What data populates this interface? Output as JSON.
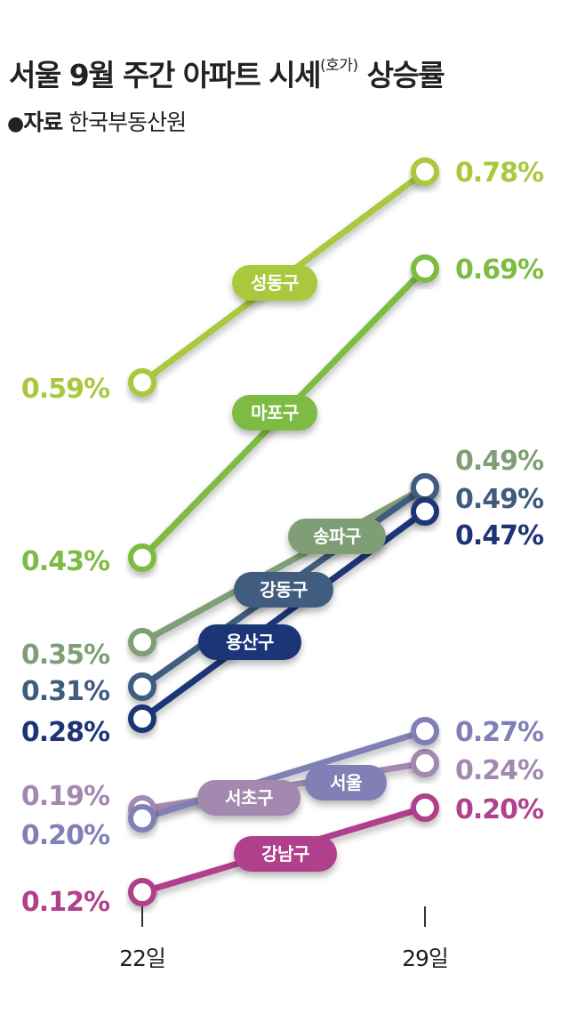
{
  "header": {
    "title_main": "서울 9월 주간 아파트 시세",
    "title_sup": "(호가)",
    "title_end": "상승률",
    "source_bullet": "●",
    "source_label": "자료",
    "source_name": "한국부동산원"
  },
  "chart_data": {
    "type": "line",
    "title": "서울 9월 주간 아파트 시세(호가) 상승률",
    "x": [
      "22일",
      "29일"
    ],
    "unit": "%",
    "series": [
      {
        "name": "성동구",
        "values": [
          0.59,
          0.78
        ],
        "labels": [
          "0.59%",
          "0.78%"
        ],
        "color": "#A9C83E"
      },
      {
        "name": "마포구",
        "values": [
          0.43,
          0.69
        ],
        "labels": [
          "0.43%",
          "0.69%"
        ],
        "color": "#7DBB42"
      },
      {
        "name": "송파구",
        "values": [
          0.35,
          0.49
        ],
        "labels": [
          "0.35%",
          "0.49%"
        ],
        "color": "#7F9E76"
      },
      {
        "name": "강동구",
        "values": [
          0.31,
          0.49
        ],
        "labels": [
          "0.31%",
          "0.49%"
        ],
        "color": "#3F5C7E"
      },
      {
        "name": "용산구",
        "values": [
          0.28,
          0.47
        ],
        "labels": [
          "0.28%",
          "0.47%"
        ],
        "color": "#1E3477"
      },
      {
        "name": "서초구",
        "values": [
          0.19,
          0.24
        ],
        "labels": [
          "0.19%",
          "0.24%"
        ],
        "color": "#A388AF"
      },
      {
        "name": "서울",
        "values": [
          0.2,
          0.27
        ],
        "labels": [
          "0.20%",
          "0.27%"
        ],
        "color": "#8080B6"
      },
      {
        "name": "강남구",
        "values": [
          0.12,
          0.2
        ],
        "labels": [
          "0.12%",
          "0.20%"
        ],
        "color": "#B0418B"
      }
    ]
  }
}
